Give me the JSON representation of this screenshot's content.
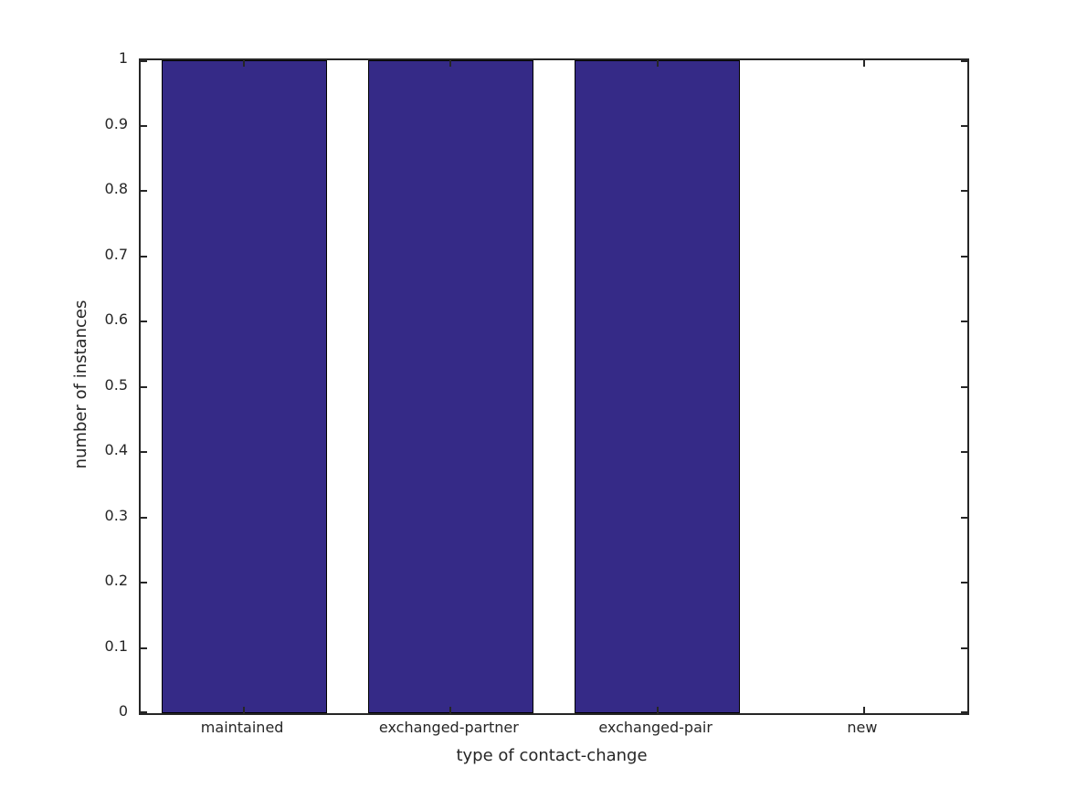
{
  "chart_data": {
    "type": "bar",
    "title": "",
    "categories": [
      "maintained",
      "exchanged-partner",
      "exchanged-pair",
      "new"
    ],
    "values": [
      1,
      1,
      1,
      0
    ],
    "xlabel": "type of contact-change",
    "ylabel": "number of instances",
    "ylim": [
      0,
      1
    ],
    "yticks": [
      0,
      0.1,
      0.2,
      0.3,
      0.4,
      0.5,
      0.6,
      0.7,
      0.8,
      0.9,
      1
    ],
    "ytick_labels": [
      "0",
      "0.1",
      "0.2",
      "0.3",
      "0.4",
      "0.5",
      "0.6",
      "0.7",
      "0.8",
      "0.9",
      "1"
    ],
    "bar_width_fraction": 0.8,
    "grid": false,
    "legend": null,
    "tick_direction": "in",
    "colors": {
      "bar_fill": "#352a87",
      "bar_edge": "#000000",
      "axis": "#262626",
      "text": "#262626",
      "background": "#ffffff"
    }
  }
}
